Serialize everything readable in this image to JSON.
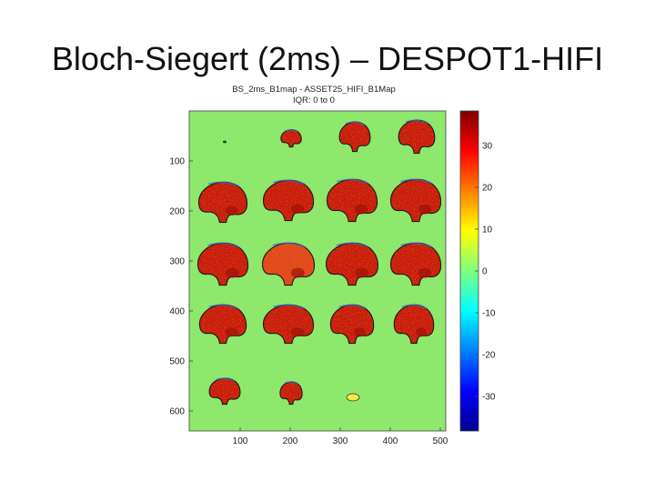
{
  "slide": {
    "title": "Bloch-Siegert (2ms) – DESPOT1-HIFI"
  },
  "figure": {
    "title_line1": "BS_2ms_B1map - ASSET25_HIFI_B1Map",
    "title_line2": "IQR: 0 to 0",
    "background_color": "#8ee86b",
    "y_ticks": [
      "100",
      "200",
      "300",
      "400",
      "500",
      "600"
    ],
    "x_ticks": [
      "100",
      "200",
      "300",
      "400",
      "500"
    ],
    "colorbar_ticks": [
      "30",
      "20",
      "10",
      "0",
      "-10",
      "-20",
      "-30"
    ],
    "colormap": "jet",
    "slices": {
      "rows": 5,
      "cols": 4,
      "tissue_color": "#c81a0c",
      "tissue_speckle_color": "#e8340f",
      "edge_color": "#2f6fd0"
    }
  }
}
